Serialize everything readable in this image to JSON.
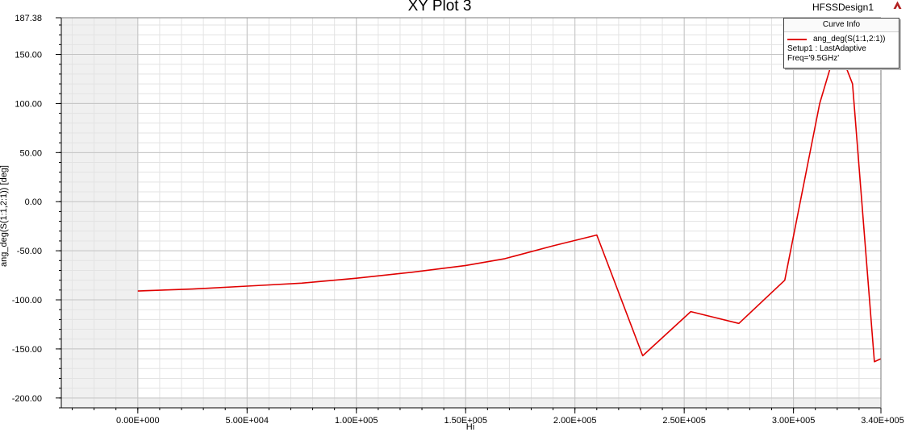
{
  "header": {
    "title": "XY Plot 3",
    "design_name": "HFSSDesign1",
    "logo_icon": "ansys-logo-icon"
  },
  "legend": {
    "header": "Curve Info",
    "series_label": "ang_deg(S(1:1,2:1))",
    "setup_label": "Setup1 : LastAdaptive",
    "freq_label": "Freq='9.5GHz'"
  },
  "chart_data": {
    "type": "line",
    "title": "XY Plot 3",
    "xlabel": "Hi",
    "ylabel": "ang_deg(S(1:1,2:1)) [deg]",
    "xlim": [
      -35000,
      340000
    ],
    "ylim": [
      -210,
      187.38
    ],
    "x_ticks": [
      0,
      50000,
      100000,
      150000,
      200000,
      250000,
      300000,
      340000
    ],
    "x_tick_labels": [
      "0.00E+000",
      "5.00E+004",
      "1.00E+005",
      "1.50E+005",
      "2.00E+005",
      "2.50E+005",
      "3.00E+005",
      "3.40E+005"
    ],
    "y_ticks": [
      187.38,
      150,
      100,
      50,
      0,
      -50,
      -100,
      -150,
      -200
    ],
    "y_tick_labels": [
      "187.38",
      "150.00",
      "100.00",
      "50.00",
      "0.00",
      "-50.00",
      "-100.00",
      "-150.00",
      "-200.00"
    ],
    "grid": true,
    "legend_position": "top-right",
    "shaded_regions": [
      {
        "x_from": -35000,
        "x_to": 0
      },
      {
        "y_from": -210,
        "y_to": -200
      }
    ],
    "series": [
      {
        "color": "#e00000",
        "points": [
          [
            0,
            -91
          ],
          [
            25000,
            -89
          ],
          [
            50000,
            -86
          ],
          [
            75000,
            -83
          ],
          [
            100000,
            -78
          ],
          [
            125000,
            -72
          ],
          [
            150000,
            -65
          ],
          [
            168000,
            -58
          ],
          [
            190000,
            -45
          ],
          [
            210000,
            -34
          ],
          [
            231000,
            -157
          ],
          [
            253000,
            -112
          ],
          [
            275000,
            -124
          ],
          [
            296000,
            -80
          ],
          [
            312000,
            100
          ],
          [
            320000,
            160
          ],
          [
            327000,
            120
          ],
          [
            337000,
            -163
          ],
          [
            340000,
            -160
          ]
        ]
      }
    ]
  }
}
